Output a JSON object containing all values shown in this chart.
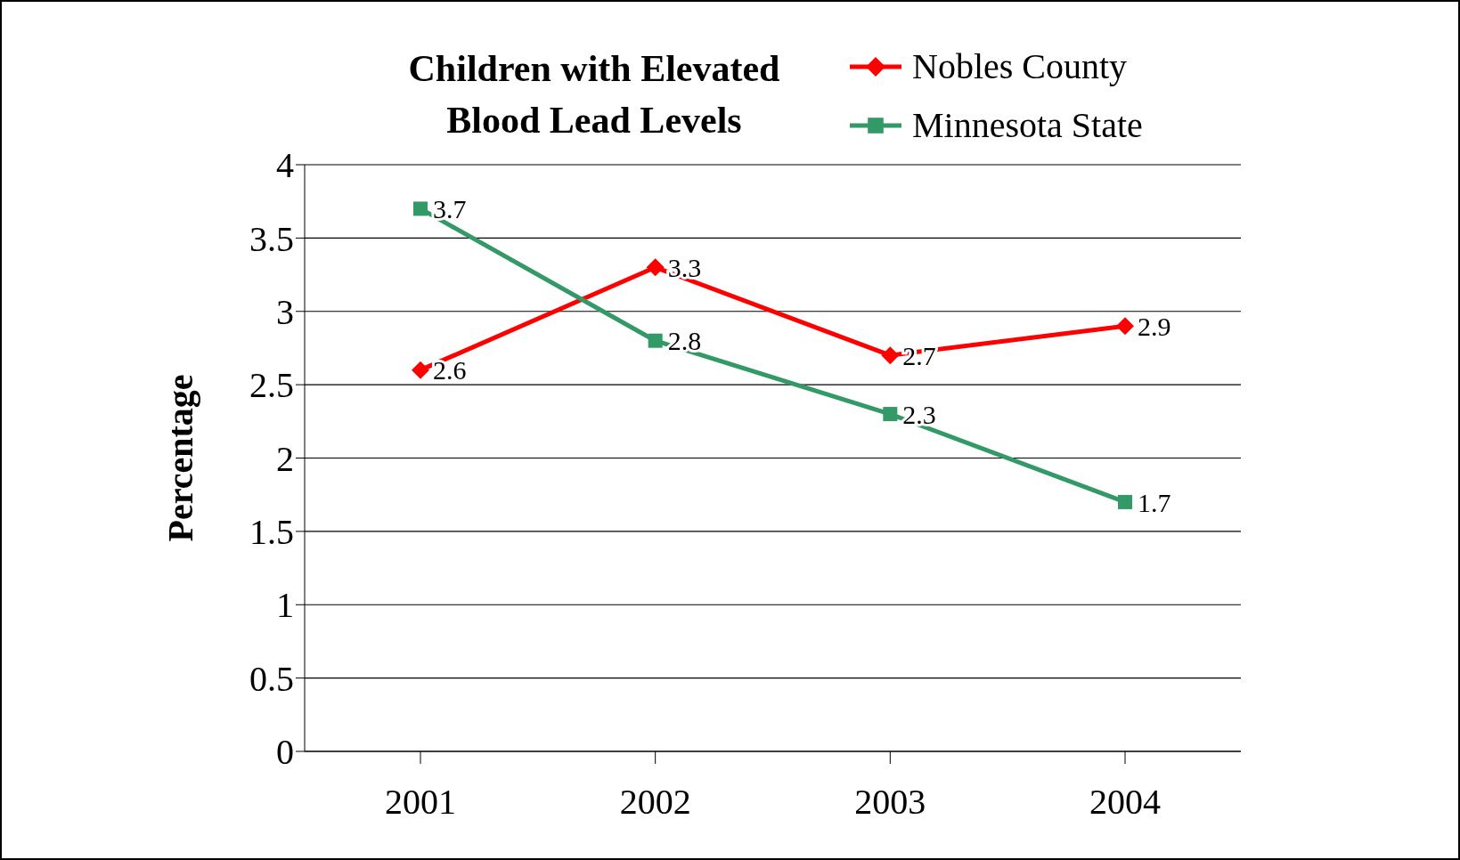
{
  "chart_data": {
    "type": "line",
    "title": "Children with Elevated Blood Lead Levels",
    "ylabel": "Percentage",
    "categories": [
      "2001",
      "2002",
      "2003",
      "2004"
    ],
    "series": [
      {
        "name": "Nobles County",
        "color": "#ff0000",
        "marker": "diamond",
        "values": [
          2.6,
          3.3,
          2.7,
          2.9
        ]
      },
      {
        "name": "Minnesota State",
        "color": "#339966",
        "marker": "square",
        "values": [
          3.7,
          2.8,
          2.3,
          1.7
        ]
      }
    ],
    "ylim": [
      0,
      4
    ],
    "yticks": [
      0,
      0.5,
      1,
      1.5,
      2,
      2.5,
      3,
      3.5,
      4
    ],
    "grid": "y",
    "legend": "top right",
    "data_labels": true
  }
}
